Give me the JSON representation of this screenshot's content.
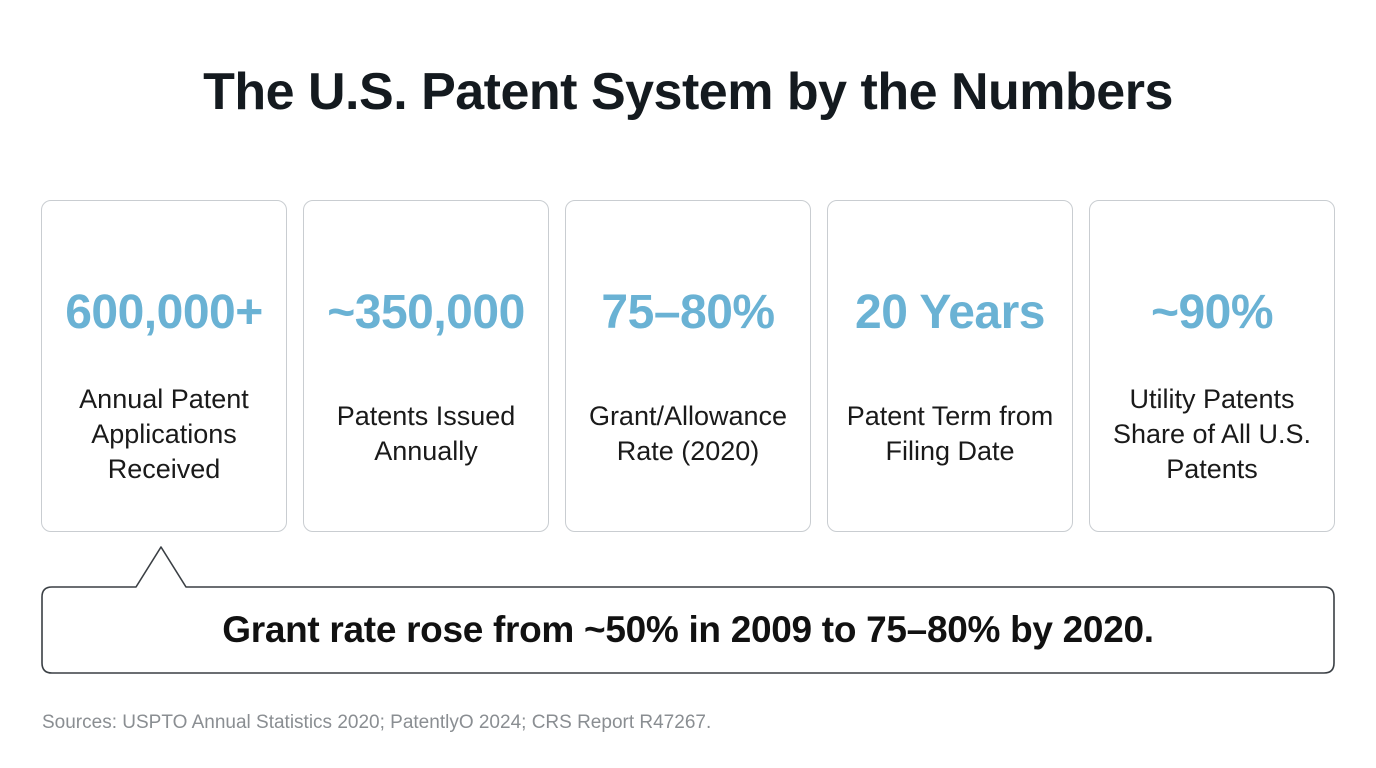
{
  "title": "The U.S. Patent System by the Numbers",
  "cards": [
    {
      "value": "600,000+",
      "label": "Annual Patent Applications Received"
    },
    {
      "value": "~350,000",
      "label": "Patents Issued Annually"
    },
    {
      "value": "75–80%",
      "label": "Grant/Allowance Rate (2020)"
    },
    {
      "value": "20 Years",
      "label": "Patent Term from Filing Date"
    },
    {
      "value": "~90%",
      "label": "Utility Patents Share of All U.S. Patents"
    }
  ],
  "callout": {
    "text": "Grant rate rose from ~50% in 2009 to 75–80% by 2020."
  },
  "sources": "Sources: USPTO Annual Statistics 2020; PatentlyO 2024; CRS Report R47267.",
  "colors": {
    "accent": "#6ab2d4",
    "border": "#c9cdd1",
    "callout_border": "#3a3f44",
    "muted_text": "#8a8e92"
  }
}
